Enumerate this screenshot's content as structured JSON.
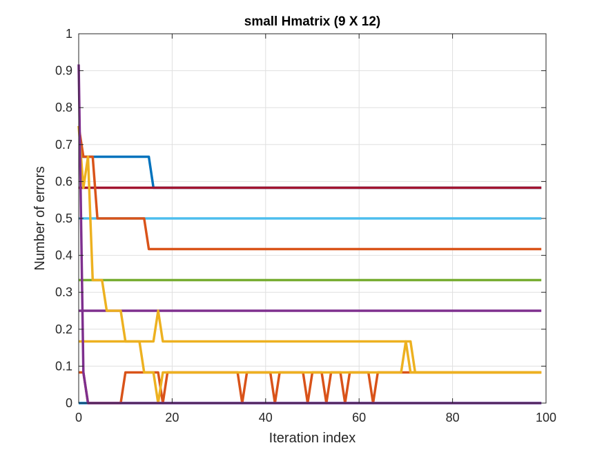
{
  "chart_data": {
    "type": "line",
    "title": "small Hmatrix (9 X 12)",
    "xlabel": "Iteration index",
    "ylabel": "Number of errors",
    "xlim": [
      0,
      100
    ],
    "ylim": [
      0,
      1
    ],
    "xticks": [
      0,
      20,
      40,
      60,
      80,
      100
    ],
    "yticks": [
      0,
      0.1,
      0.2,
      0.3,
      0.4,
      0.5,
      0.6,
      0.7,
      0.8,
      0.9,
      1
    ],
    "grid": true,
    "series": [
      {
        "color": "#0072BD",
        "points": [
          [
            0,
            0
          ],
          [
            99,
            0
          ]
        ]
      },
      {
        "color": "#0072BD",
        "points": [
          [
            0,
            0.667
          ],
          [
            15,
            0.667
          ],
          [
            16,
            0.583
          ],
          [
            99,
            0.583
          ]
        ]
      },
      {
        "color": "#A2142F",
        "points": [
          [
            0,
            0.583
          ],
          [
            99,
            0.583
          ]
        ]
      },
      {
        "color": "#4DBEEE",
        "points": [
          [
            0,
            0.5
          ],
          [
            99,
            0.5
          ]
        ]
      },
      {
        "color": "#D95319",
        "points": [
          [
            0,
            0.75
          ],
          [
            1,
            0.667
          ],
          [
            3,
            0.667
          ],
          [
            4,
            0.5
          ],
          [
            14,
            0.5
          ],
          [
            15,
            0.417
          ],
          [
            99,
            0.417
          ]
        ]
      },
      {
        "color": "#77AC30",
        "points": [
          [
            0,
            0.333
          ],
          [
            99,
            0.333
          ]
        ]
      },
      {
        "color": "#7E2F8E",
        "points": [
          [
            0,
            0.25
          ],
          [
            99,
            0.25
          ]
        ]
      },
      {
        "color": "#D95319",
        "points": [
          [
            0,
            0.083
          ],
          [
            1,
            0.083
          ],
          [
            2,
            0
          ],
          [
            9,
            0
          ],
          [
            10,
            0.083
          ],
          [
            17,
            0.083
          ],
          [
            18,
            0
          ],
          [
            19,
            0.083
          ],
          [
            34,
            0.083
          ],
          [
            35,
            0
          ],
          [
            36,
            0.083
          ],
          [
            41,
            0.083
          ],
          [
            42,
            0
          ],
          [
            43,
            0.083
          ],
          [
            48,
            0.083
          ],
          [
            49,
            0
          ],
          [
            50,
            0.083
          ],
          [
            52,
            0.083
          ],
          [
            53,
            0
          ],
          [
            54,
            0.083
          ],
          [
            56,
            0.083
          ],
          [
            57,
            0
          ],
          [
            58,
            0.083
          ],
          [
            62,
            0.083
          ],
          [
            63,
            0
          ],
          [
            64,
            0.083
          ],
          [
            99,
            0.083
          ]
        ]
      },
      {
        "color": "#EDB120",
        "points": [
          [
            0,
            0.167
          ],
          [
            16,
            0.167
          ],
          [
            17,
            0.25
          ],
          [
            18,
            0.167
          ],
          [
            70,
            0.167
          ],
          [
            71,
            0.083
          ],
          [
            99,
            0.083
          ]
        ]
      },
      {
        "color": "#EDB120",
        "points": [
          [
            0,
            0.75
          ],
          [
            1,
            0.583
          ],
          [
            2,
            0.667
          ],
          [
            3,
            0.333
          ],
          [
            5,
            0.333
          ],
          [
            6,
            0.25
          ],
          [
            9,
            0.25
          ],
          [
            10,
            0.167
          ],
          [
            13,
            0.167
          ],
          [
            14,
            0.083
          ],
          [
            16,
            0.083
          ],
          [
            17,
            0
          ],
          [
            18,
            0.083
          ],
          [
            69,
            0.083
          ],
          [
            70,
            0.167
          ],
          [
            71,
            0.167
          ],
          [
            72,
            0.083
          ],
          [
            99,
            0.083
          ]
        ]
      },
      {
        "color": "#7E2F8E",
        "points": [
          [
            0,
            0.917
          ],
          [
            1,
            0.083
          ],
          [
            2,
            0
          ],
          [
            99,
            0
          ]
        ]
      }
    ]
  }
}
